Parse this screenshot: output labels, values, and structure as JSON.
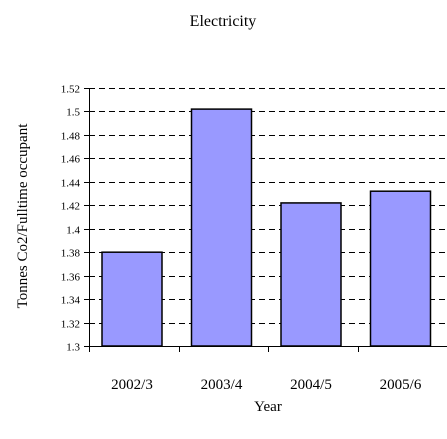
{
  "chart_data": {
    "type": "bar",
    "title": "Electricity",
    "xlabel": "Year",
    "ylabel": "Tonnes Co2/Fulltime occupant",
    "categories": [
      "2002/3",
      "2003/4",
      "2004/5",
      "2005/6"
    ],
    "values": [
      1.38,
      1.502,
      1.422,
      1.432
    ],
    "ylim": [
      1.3,
      1.52
    ],
    "yticks": [
      "1.3",
      "1.32",
      "1.34",
      "1.36",
      "1.38",
      "1.4",
      "1.42",
      "1.44",
      "1.46",
      "1.48",
      "1.5",
      "1.52"
    ],
    "grid": true,
    "legend": "none",
    "bar_color": "#9999ff"
  }
}
